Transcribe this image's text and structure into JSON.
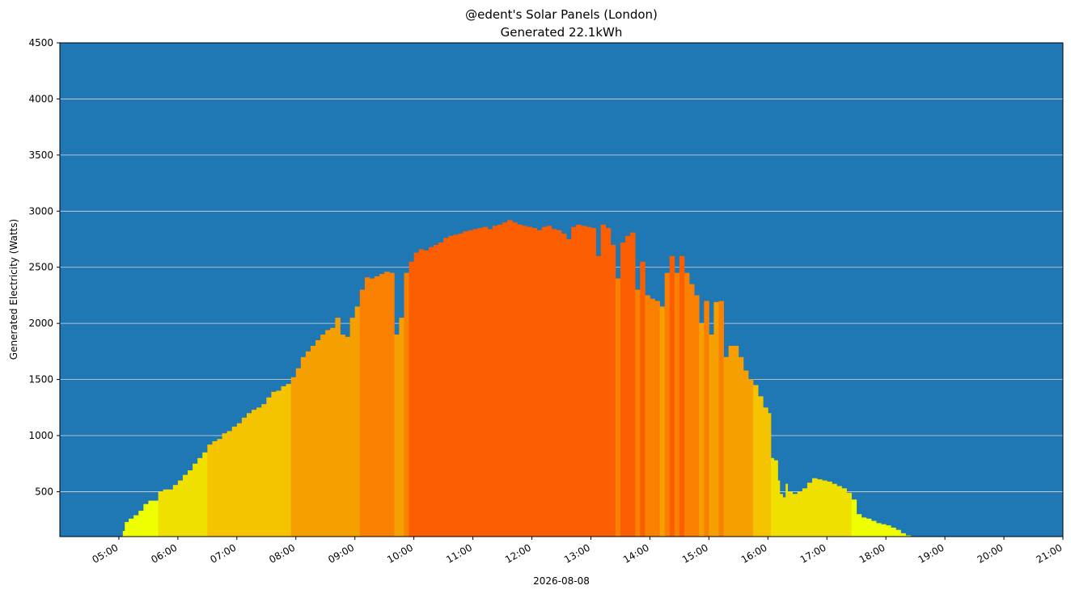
{
  "chart_data": {
    "type": "bar",
    "title": "@edent's Solar Panels (London)",
    "subtitle": "Generated 22.1kWh",
    "xlabel": "2026-08-08",
    "ylabel": "Generated Electricity (Watts)",
    "ylim": [
      100,
      4500
    ],
    "xlim": [
      "04:00",
      "21:00"
    ],
    "yticks": [
      500,
      1000,
      1500,
      2000,
      2500,
      3000,
      3500,
      4000,
      4500
    ],
    "xticks": [
      "05:00",
      "06:00",
      "07:00",
      "08:00",
      "09:00",
      "10:00",
      "11:00",
      "12:00",
      "13:00",
      "14:00",
      "15:00",
      "16:00",
      "17:00",
      "18:00",
      "19:00",
      "20:00",
      "21:00"
    ],
    "grid": "horizontal",
    "colors": {
      "background": "#1f77b4",
      "grid": "#d9d9d9",
      "bands": [
        "#eeff00",
        "#f0e000",
        "#f5c400",
        "#f5a000",
        "#f98000",
        "#fb5e00"
      ]
    },
    "points": [
      [
        "05:04",
        150
      ],
      [
        "05:06",
        230
      ],
      [
        "05:10",
        260
      ],
      [
        "05:15",
        290
      ],
      [
        "05:20",
        330
      ],
      [
        "05:25",
        390
      ],
      [
        "05:30",
        420
      ],
      [
        "05:35",
        420
      ],
      [
        "05:40",
        500
      ],
      [
        "05:45",
        520
      ],
      [
        "05:50",
        520
      ],
      [
        "05:55",
        560
      ],
      [
        "06:00",
        600
      ],
      [
        "06:05",
        650
      ],
      [
        "06:10",
        690
      ],
      [
        "06:15",
        750
      ],
      [
        "06:20",
        800
      ],
      [
        "06:25",
        850
      ],
      [
        "06:30",
        920
      ],
      [
        "06:35",
        950
      ],
      [
        "06:40",
        970
      ],
      [
        "06:45",
        1020
      ],
      [
        "06:50",
        1040
      ],
      [
        "06:55",
        1080
      ],
      [
        "07:00",
        1110
      ],
      [
        "07:05",
        1160
      ],
      [
        "07:10",
        1200
      ],
      [
        "07:15",
        1230
      ],
      [
        "07:20",
        1250
      ],
      [
        "07:25",
        1280
      ],
      [
        "07:30",
        1340
      ],
      [
        "07:35",
        1390
      ],
      [
        "07:40",
        1400
      ],
      [
        "07:45",
        1440
      ],
      [
        "07:50",
        1460
      ],
      [
        "07:55",
        1520
      ],
      [
        "08:00",
        1600
      ],
      [
        "08:05",
        1700
      ],
      [
        "08:10",
        1750
      ],
      [
        "08:15",
        1800
      ],
      [
        "08:20",
        1850
      ],
      [
        "08:25",
        1900
      ],
      [
        "08:30",
        1940
      ],
      [
        "08:35",
        1960
      ],
      [
        "08:40",
        2050
      ],
      [
        "08:45",
        1900
      ],
      [
        "08:50",
        1880
      ],
      [
        "08:55",
        2050
      ],
      [
        "09:00",
        2150
      ],
      [
        "09:05",
        2300
      ],
      [
        "09:10",
        2410
      ],
      [
        "09:15",
        2400
      ],
      [
        "09:20",
        2420
      ],
      [
        "09:25",
        2440
      ],
      [
        "09:30",
        2460
      ],
      [
        "09:35",
        2450
      ],
      [
        "09:40",
        1900
      ],
      [
        "09:45",
        2050
      ],
      [
        "09:50",
        2450
      ],
      [
        "09:55",
        2550
      ],
      [
        "10:00",
        2630
      ],
      [
        "10:05",
        2660
      ],
      [
        "10:10",
        2650
      ],
      [
        "10:15",
        2680
      ],
      [
        "10:20",
        2700
      ],
      [
        "10:25",
        2720
      ],
      [
        "10:30",
        2760
      ],
      [
        "10:35",
        2780
      ],
      [
        "10:40",
        2790
      ],
      [
        "10:45",
        2800
      ],
      [
        "10:50",
        2820
      ],
      [
        "10:55",
        2830
      ],
      [
        "11:00",
        2840
      ],
      [
        "11:05",
        2850
      ],
      [
        "11:10",
        2860
      ],
      [
        "11:15",
        2840
      ],
      [
        "11:20",
        2870
      ],
      [
        "11:25",
        2880
      ],
      [
        "11:30",
        2900
      ],
      [
        "11:35",
        2920
      ],
      [
        "11:40",
        2900
      ],
      [
        "11:45",
        2880
      ],
      [
        "11:50",
        2870
      ],
      [
        "11:55",
        2860
      ],
      [
        "12:00",
        2850
      ],
      [
        "12:05",
        2830
      ],
      [
        "12:10",
        2860
      ],
      [
        "12:15",
        2870
      ],
      [
        "12:20",
        2840
      ],
      [
        "12:25",
        2830
      ],
      [
        "12:30",
        2800
      ],
      [
        "12:35",
        2750
      ],
      [
        "12:40",
        2860
      ],
      [
        "12:45",
        2880
      ],
      [
        "12:50",
        2870
      ],
      [
        "12:55",
        2860
      ],
      [
        "13:00",
        2850
      ],
      [
        "13:05",
        2600
      ],
      [
        "13:10",
        2880
      ],
      [
        "13:15",
        2850
      ],
      [
        "13:20",
        2700
      ],
      [
        "13:25",
        2400
      ],
      [
        "13:30",
        2720
      ],
      [
        "13:35",
        2780
      ],
      [
        "13:40",
        2810
      ],
      [
        "13:45",
        2300
      ],
      [
        "13:50",
        2550
      ],
      [
        "13:55",
        2250
      ],
      [
        "14:00",
        2220
      ],
      [
        "14:05",
        2200
      ],
      [
        "14:10",
        2150
      ],
      [
        "14:15",
        2450
      ],
      [
        "14:20",
        2600
      ],
      [
        "14:25",
        2450
      ],
      [
        "14:30",
        2600
      ],
      [
        "14:35",
        2450
      ],
      [
        "14:40",
        2350
      ],
      [
        "14:45",
        2250
      ],
      [
        "14:50",
        2000
      ],
      [
        "14:55",
        2200
      ],
      [
        "15:00",
        1900
      ],
      [
        "15:05",
        2190
      ],
      [
        "15:10",
        2200
      ],
      [
        "15:15",
        1700
      ],
      [
        "15:20",
        1800
      ],
      [
        "15:25",
        1800
      ],
      [
        "15:30",
        1700
      ],
      [
        "15:35",
        1580
      ],
      [
        "15:40",
        1500
      ],
      [
        "15:45",
        1450
      ],
      [
        "15:50",
        1350
      ],
      [
        "15:55",
        1250
      ],
      [
        "16:00",
        1200
      ],
      [
        "16:03",
        800
      ],
      [
        "16:06",
        780
      ],
      [
        "16:10",
        600
      ],
      [
        "16:12",
        480
      ],
      [
        "16:15",
        450
      ],
      [
        "16:18",
        570
      ],
      [
        "16:20",
        500
      ],
      [
        "16:25",
        480
      ],
      [
        "16:30",
        500
      ],
      [
        "16:35",
        530
      ],
      [
        "16:40",
        580
      ],
      [
        "16:45",
        620
      ],
      [
        "16:50",
        610
      ],
      [
        "16:55",
        600
      ],
      [
        "17:00",
        590
      ],
      [
        "17:05",
        570
      ],
      [
        "17:10",
        550
      ],
      [
        "17:15",
        530
      ],
      [
        "17:20",
        490
      ],
      [
        "17:25",
        430
      ],
      [
        "17:30",
        300
      ],
      [
        "17:35",
        270
      ],
      [
        "17:40",
        260
      ],
      [
        "17:45",
        240
      ],
      [
        "17:50",
        220
      ],
      [
        "17:55",
        210
      ],
      [
        "18:00",
        200
      ],
      [
        "18:05",
        180
      ],
      [
        "18:10",
        160
      ],
      [
        "18:15",
        130
      ],
      [
        "18:20",
        110
      ]
    ]
  }
}
